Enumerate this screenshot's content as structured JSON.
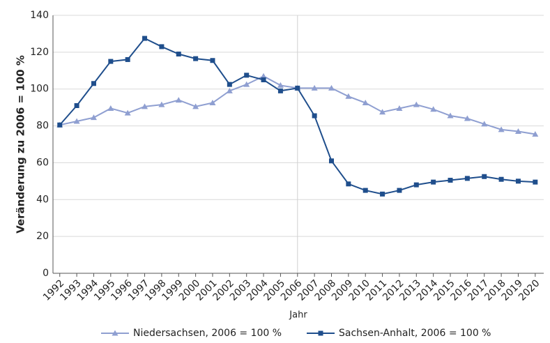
{
  "chart_data": {
    "type": "line",
    "y_label": "Veränderung zu 2006 = 100 %",
    "x_label": "Jahr",
    "x": [
      1992,
      1993,
      1994,
      1995,
      1996,
      1997,
      1998,
      1999,
      2000,
      2001,
      2002,
      2003,
      2004,
      2005,
      2006,
      2007,
      2008,
      2009,
      2010,
      2011,
      2012,
      2013,
      2014,
      2015,
      2016,
      2017,
      2018,
      2019,
      2020
    ],
    "xlim": [
      1991.6,
      2020.5
    ],
    "xticks": [
      1992,
      1993,
      1994,
      1995,
      1996,
      1997,
      1998,
      1999,
      2000,
      2001,
      2002,
      2003,
      2004,
      2005,
      2006,
      2007,
      2008,
      2009,
      2010,
      2011,
      2012,
      2013,
      2014,
      2015,
      2016,
      2017,
      2018,
      2019,
      2020
    ],
    "ylim": [
      0,
      140
    ],
    "yticks": [
      0,
      20,
      40,
      60,
      80,
      100,
      120,
      140
    ],
    "grid": true,
    "vline_x": 2006,
    "legend": "bottom",
    "series": [
      {
        "name": "Niedersachsen, 2006 = 100 %",
        "color": "#8f9fd1",
        "marker": "triangle",
        "values": [
          80.5,
          82.5,
          84.5,
          89.5,
          87,
          90.5,
          91.5,
          94,
          90.5,
          92.5,
          99,
          102.5,
          107,
          102,
          100.5,
          100.5,
          100.5,
          96,
          92.5,
          87.5,
          89.5,
          91.5,
          89,
          85.5,
          84,
          81,
          78,
          77,
          75.5
        ]
      },
      {
        "name": "Sachsen-Anhalt, 2006 = 100 %",
        "color": "#1f4e8c",
        "marker": "square",
        "values": [
          80.5,
          91,
          103,
          115,
          116,
          127.5,
          123,
          119,
          116.5,
          115.5,
          102.5,
          107.5,
          105,
          99,
          100.5,
          85.5,
          61,
          48.5,
          45,
          43,
          45,
          48,
          49.5,
          50.5,
          51.5,
          52.5,
          51,
          50,
          49.5
        ]
      }
    ]
  }
}
